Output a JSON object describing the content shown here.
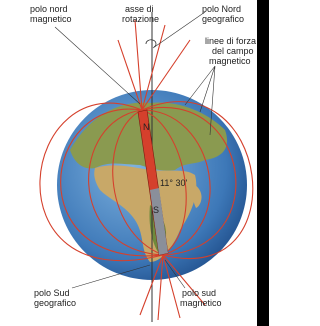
{
  "labels": {
    "north_magnetic_pole": [
      "polo nord",
      "magnetico"
    ],
    "rotation_axis": [
      "asse di",
      "rotazione"
    ],
    "north_geographic_pole": [
      "polo Nord",
      "geografico"
    ],
    "field_lines": [
      "linee di forza",
      "del campo",
      "magnetico"
    ],
    "angle": "11° 30'",
    "magnet_north": "N",
    "magnet_south": "S",
    "south_geographic_pole": [
      "polo Sud",
      "geografico"
    ],
    "south_magnetic_pole": [
      "polo sud",
      "magnetico"
    ]
  }
}
